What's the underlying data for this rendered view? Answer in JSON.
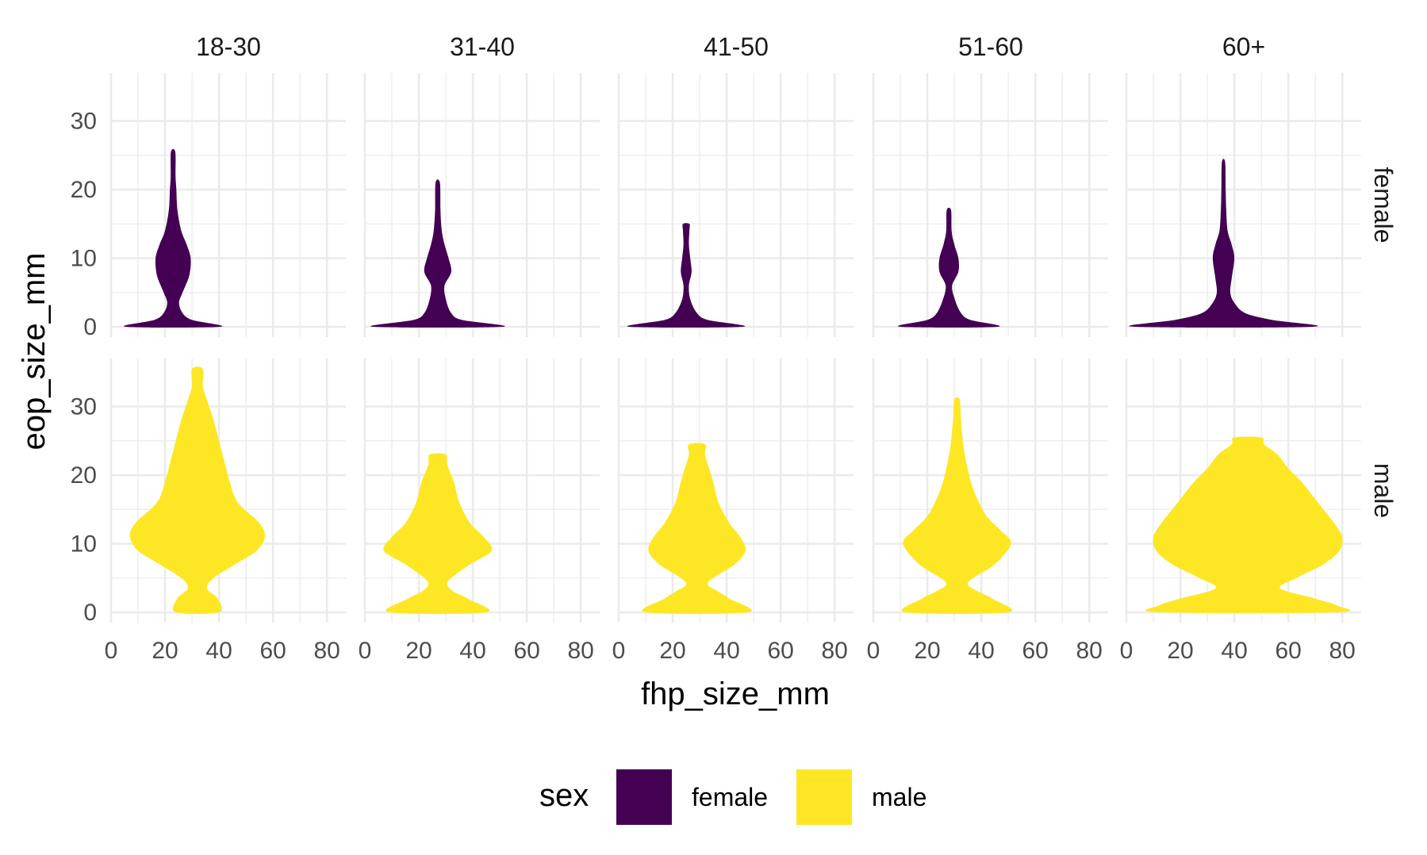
{
  "chart_data": {
    "type": "violin",
    "title": "",
    "xlabel": "fhp_size_mm",
    "ylabel": "eop_size_mm",
    "xlim": [
      0,
      87
    ],
    "ylim": [
      -1.5,
      37
    ],
    "x_ticks": [
      0,
      20,
      40,
      60,
      80
    ],
    "y_ticks": [
      0,
      10,
      20,
      30
    ],
    "x_tick_labels": [
      "0",
      "20",
      "40",
      "60",
      "80"
    ],
    "y_tick_labels": [
      "0",
      "10",
      "20",
      "30"
    ],
    "grid": true,
    "legend_position": "bottom",
    "legend": {
      "title": "sex",
      "entries": [
        {
          "label": "female",
          "color": "#440154"
        },
        {
          "label": "male",
          "color": "#FDE725"
        }
      ]
    },
    "facets": {
      "columns": [
        "18-30",
        "31-40",
        "41-50",
        "51-60",
        "60+"
      ],
      "rows": [
        "female",
        "male"
      ]
    },
    "violins": [
      {
        "col": 0,
        "row": 0,
        "x_center": 23,
        "y_min": 0,
        "y_max": 25.5,
        "profile": [
          [
            0,
            17.5
          ],
          [
            1,
            7
          ],
          [
            2,
            3.5
          ],
          [
            3.5,
            2.2
          ],
          [
            5,
            3.5
          ],
          [
            7.5,
            6
          ],
          [
            10,
            6.5
          ],
          [
            12,
            5
          ],
          [
            14,
            3
          ],
          [
            17,
            1.6
          ],
          [
            20,
            1.2
          ],
          [
            22,
            0.9
          ],
          [
            25.5,
            0.8
          ]
        ]
      },
      {
        "col": 1,
        "row": 0,
        "x_center": 27,
        "y_min": 0,
        "y_max": 21,
        "profile": [
          [
            0,
            24
          ],
          [
            1,
            9
          ],
          [
            2,
            5
          ],
          [
            4,
            3
          ],
          [
            6,
            2.5
          ],
          [
            8,
            5
          ],
          [
            10,
            4
          ],
          [
            12,
            2.5
          ],
          [
            14,
            1.5
          ],
          [
            17,
            1
          ],
          [
            21,
            0.8
          ]
        ]
      },
      {
        "col": 2,
        "row": 0,
        "x_center": 25,
        "y_min": 0,
        "y_max": 15,
        "profile": [
          [
            0,
            21
          ],
          [
            1,
            8
          ],
          [
            2,
            4
          ],
          [
            4,
            1.5
          ],
          [
            6,
            1
          ],
          [
            8,
            2
          ],
          [
            10,
            1.5
          ],
          [
            12,
            1
          ],
          [
            14,
            1.2
          ],
          [
            15,
            1.2
          ]
        ]
      },
      {
        "col": 3,
        "row": 0,
        "x_center": 28,
        "y_min": 0,
        "y_max": 17,
        "profile": [
          [
            0,
            18
          ],
          [
            1,
            8
          ],
          [
            2,
            4.5
          ],
          [
            4,
            2.2
          ],
          [
            6,
            1.2
          ],
          [
            8,
            3.5
          ],
          [
            10,
            3.5
          ],
          [
            12,
            2
          ],
          [
            14,
            1
          ],
          [
            17,
            0.8
          ]
        ]
      },
      {
        "col": 4,
        "row": 0,
        "x_center": 36,
        "y_min": 0,
        "y_max": 24,
        "profile": [
          [
            0,
            33
          ],
          [
            1,
            18
          ],
          [
            2,
            8
          ],
          [
            3.5,
            4
          ],
          [
            5,
            2.5
          ],
          [
            7,
            3
          ],
          [
            10,
            4
          ],
          [
            12,
            3
          ],
          [
            14,
            1.5
          ],
          [
            17,
            1
          ],
          [
            20,
            0.8
          ],
          [
            24,
            0.6
          ]
        ]
      },
      {
        "col": 0,
        "row": 1,
        "x_center": 32,
        "y_min": 0,
        "y_max": 35.5,
        "profile": [
          [
            0,
            8
          ],
          [
            2,
            7.5
          ],
          [
            3.5,
            3.5
          ],
          [
            5,
            6
          ],
          [
            7,
            14
          ],
          [
            9,
            22
          ],
          [
            11,
            25
          ],
          [
            13,
            23
          ],
          [
            16,
            15
          ],
          [
            19,
            12
          ],
          [
            22,
            10
          ],
          [
            25,
            8
          ],
          [
            28,
            6
          ],
          [
            31,
            3.5
          ],
          [
            33,
            2
          ],
          [
            35.5,
            2
          ]
        ]
      },
      {
        "col": 1,
        "row": 1,
        "x_center": 27,
        "y_min": 0,
        "y_max": 23,
        "profile": [
          [
            0,
            18
          ],
          [
            2,
            11
          ],
          [
            3,
            6
          ],
          [
            4,
            3.5
          ],
          [
            5,
            5
          ],
          [
            7,
            12
          ],
          [
            9,
            20
          ],
          [
            11,
            17
          ],
          [
            13,
            12
          ],
          [
            16,
            8
          ],
          [
            19,
            6
          ],
          [
            21.5,
            3.5
          ],
          [
            23,
            3
          ]
        ]
      },
      {
        "col": 2,
        "row": 1,
        "x_center": 29,
        "y_min": 0,
        "y_max": 24.5,
        "profile": [
          [
            0,
            19
          ],
          [
            2,
            12
          ],
          [
            3,
            8
          ],
          [
            4,
            4
          ],
          [
            5,
            6
          ],
          [
            7,
            14
          ],
          [
            9,
            18
          ],
          [
            11,
            16
          ],
          [
            13,
            12
          ],
          [
            16,
            8
          ],
          [
            19,
            6
          ],
          [
            21,
            4.5
          ],
          [
            23,
            3
          ],
          [
            24.5,
            3
          ]
        ]
      },
      {
        "col": 3,
        "row": 1,
        "x_center": 31,
        "y_min": 0,
        "y_max": 31,
        "profile": [
          [
            0,
            19
          ],
          [
            2,
            13
          ],
          [
            3,
            8
          ],
          [
            4,
            4
          ],
          [
            5,
            6
          ],
          [
            7,
            14
          ],
          [
            10,
            20
          ],
          [
            12,
            16
          ],
          [
            14,
            11
          ],
          [
            17,
            7
          ],
          [
            20,
            4.5
          ],
          [
            24,
            2.5
          ],
          [
            28,
            1.5
          ],
          [
            31,
            1
          ]
        ]
      },
      {
        "col": 4,
        "row": 1,
        "x_center": 45,
        "y_min": 0,
        "y_max": 25.5,
        "profile": [
          [
            0,
            33
          ],
          [
            1,
            33
          ],
          [
            2,
            25
          ],
          [
            3.5,
            12
          ],
          [
            5,
            18
          ],
          [
            7,
            28
          ],
          [
            9,
            34
          ],
          [
            11,
            35
          ],
          [
            13,
            32
          ],
          [
            15,
            28
          ],
          [
            17,
            24
          ],
          [
            19,
            20
          ],
          [
            21,
            15
          ],
          [
            23,
            11
          ],
          [
            24.5,
            6
          ],
          [
            25.5,
            5
          ]
        ]
      }
    ]
  }
}
